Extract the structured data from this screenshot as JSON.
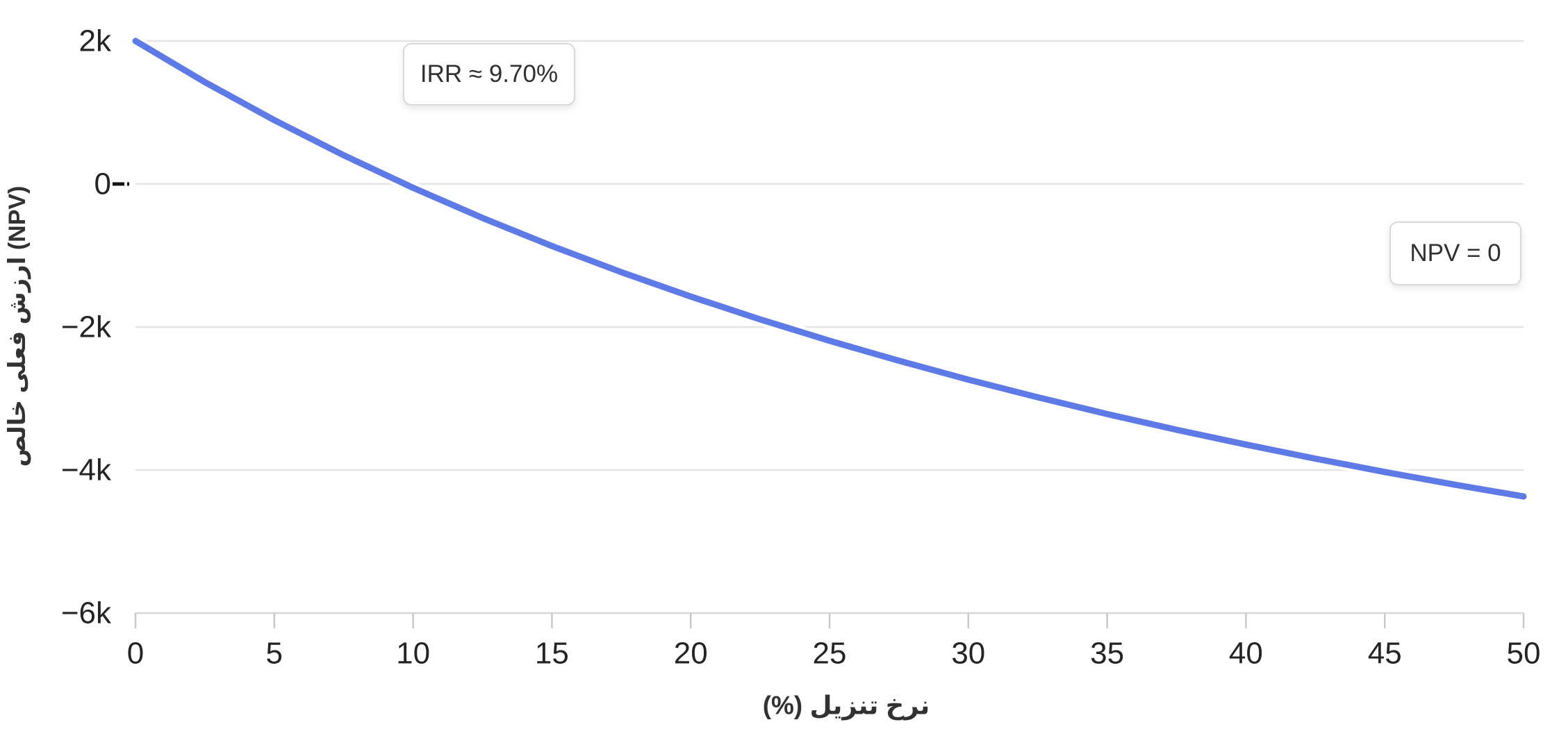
{
  "chart_data": {
    "type": "line",
    "title": "",
    "xlabel": "نرخ تنزیل (%)",
    "ylabel": "ارزش فعلی خالص (NPV)",
    "x": [
      0,
      2.5,
      5,
      7.5,
      10,
      12.5,
      15,
      17.5,
      20,
      22.5,
      25,
      27.5,
      30,
      32.5,
      35,
      37.5,
      40,
      42.5,
      45,
      47.5,
      50
    ],
    "series": [
      {
        "name": "NPV",
        "color": "#5e7ae6",
        "values": [
          2000,
          1424,
          893,
          402,
          -53,
          -475,
          -867,
          -1233,
          -1574,
          -1893,
          -2192,
          -2472,
          -2736,
          -2983,
          -3217,
          -3437,
          -3644,
          -3841,
          -4027,
          -4203,
          -4370
        ]
      }
    ],
    "xlim": [
      0,
      50
    ],
    "ylim": [
      -6000,
      2000
    ],
    "x_ticks": [
      "0",
      "5",
      "10",
      "15",
      "20",
      "25",
      "30",
      "35",
      "40",
      "45",
      "50"
    ],
    "x_tick_values": [
      0,
      5,
      10,
      15,
      20,
      25,
      30,
      35,
      40,
      45,
      50
    ],
    "y_ticks": [
      {
        "value": 2000,
        "label": "2k"
      },
      {
        "value": 0,
        "label": "0"
      },
      {
        "value": -2000,
        "label": "−2k"
      },
      {
        "value": -4000,
        "label": "−4k"
      },
      {
        "value": -6000,
        "label": "−6k"
      }
    ],
    "grid": true,
    "legend": false,
    "zero_line": {
      "value": 0,
      "style": "dashed",
      "color": "#141414"
    },
    "annotations": [
      {
        "id": "irr",
        "text": "IRR ≈ 9.70%"
      },
      {
        "id": "npv-zero",
        "text": "NPV = 0"
      }
    ],
    "colors": {
      "line": "#5e7ae6",
      "halo": "#ffffff",
      "grid": "#e4e4e4",
      "axis_line": "#d7d7d7",
      "tick_mark": "#c9c9c9",
      "tick_text": "#242424"
    }
  }
}
